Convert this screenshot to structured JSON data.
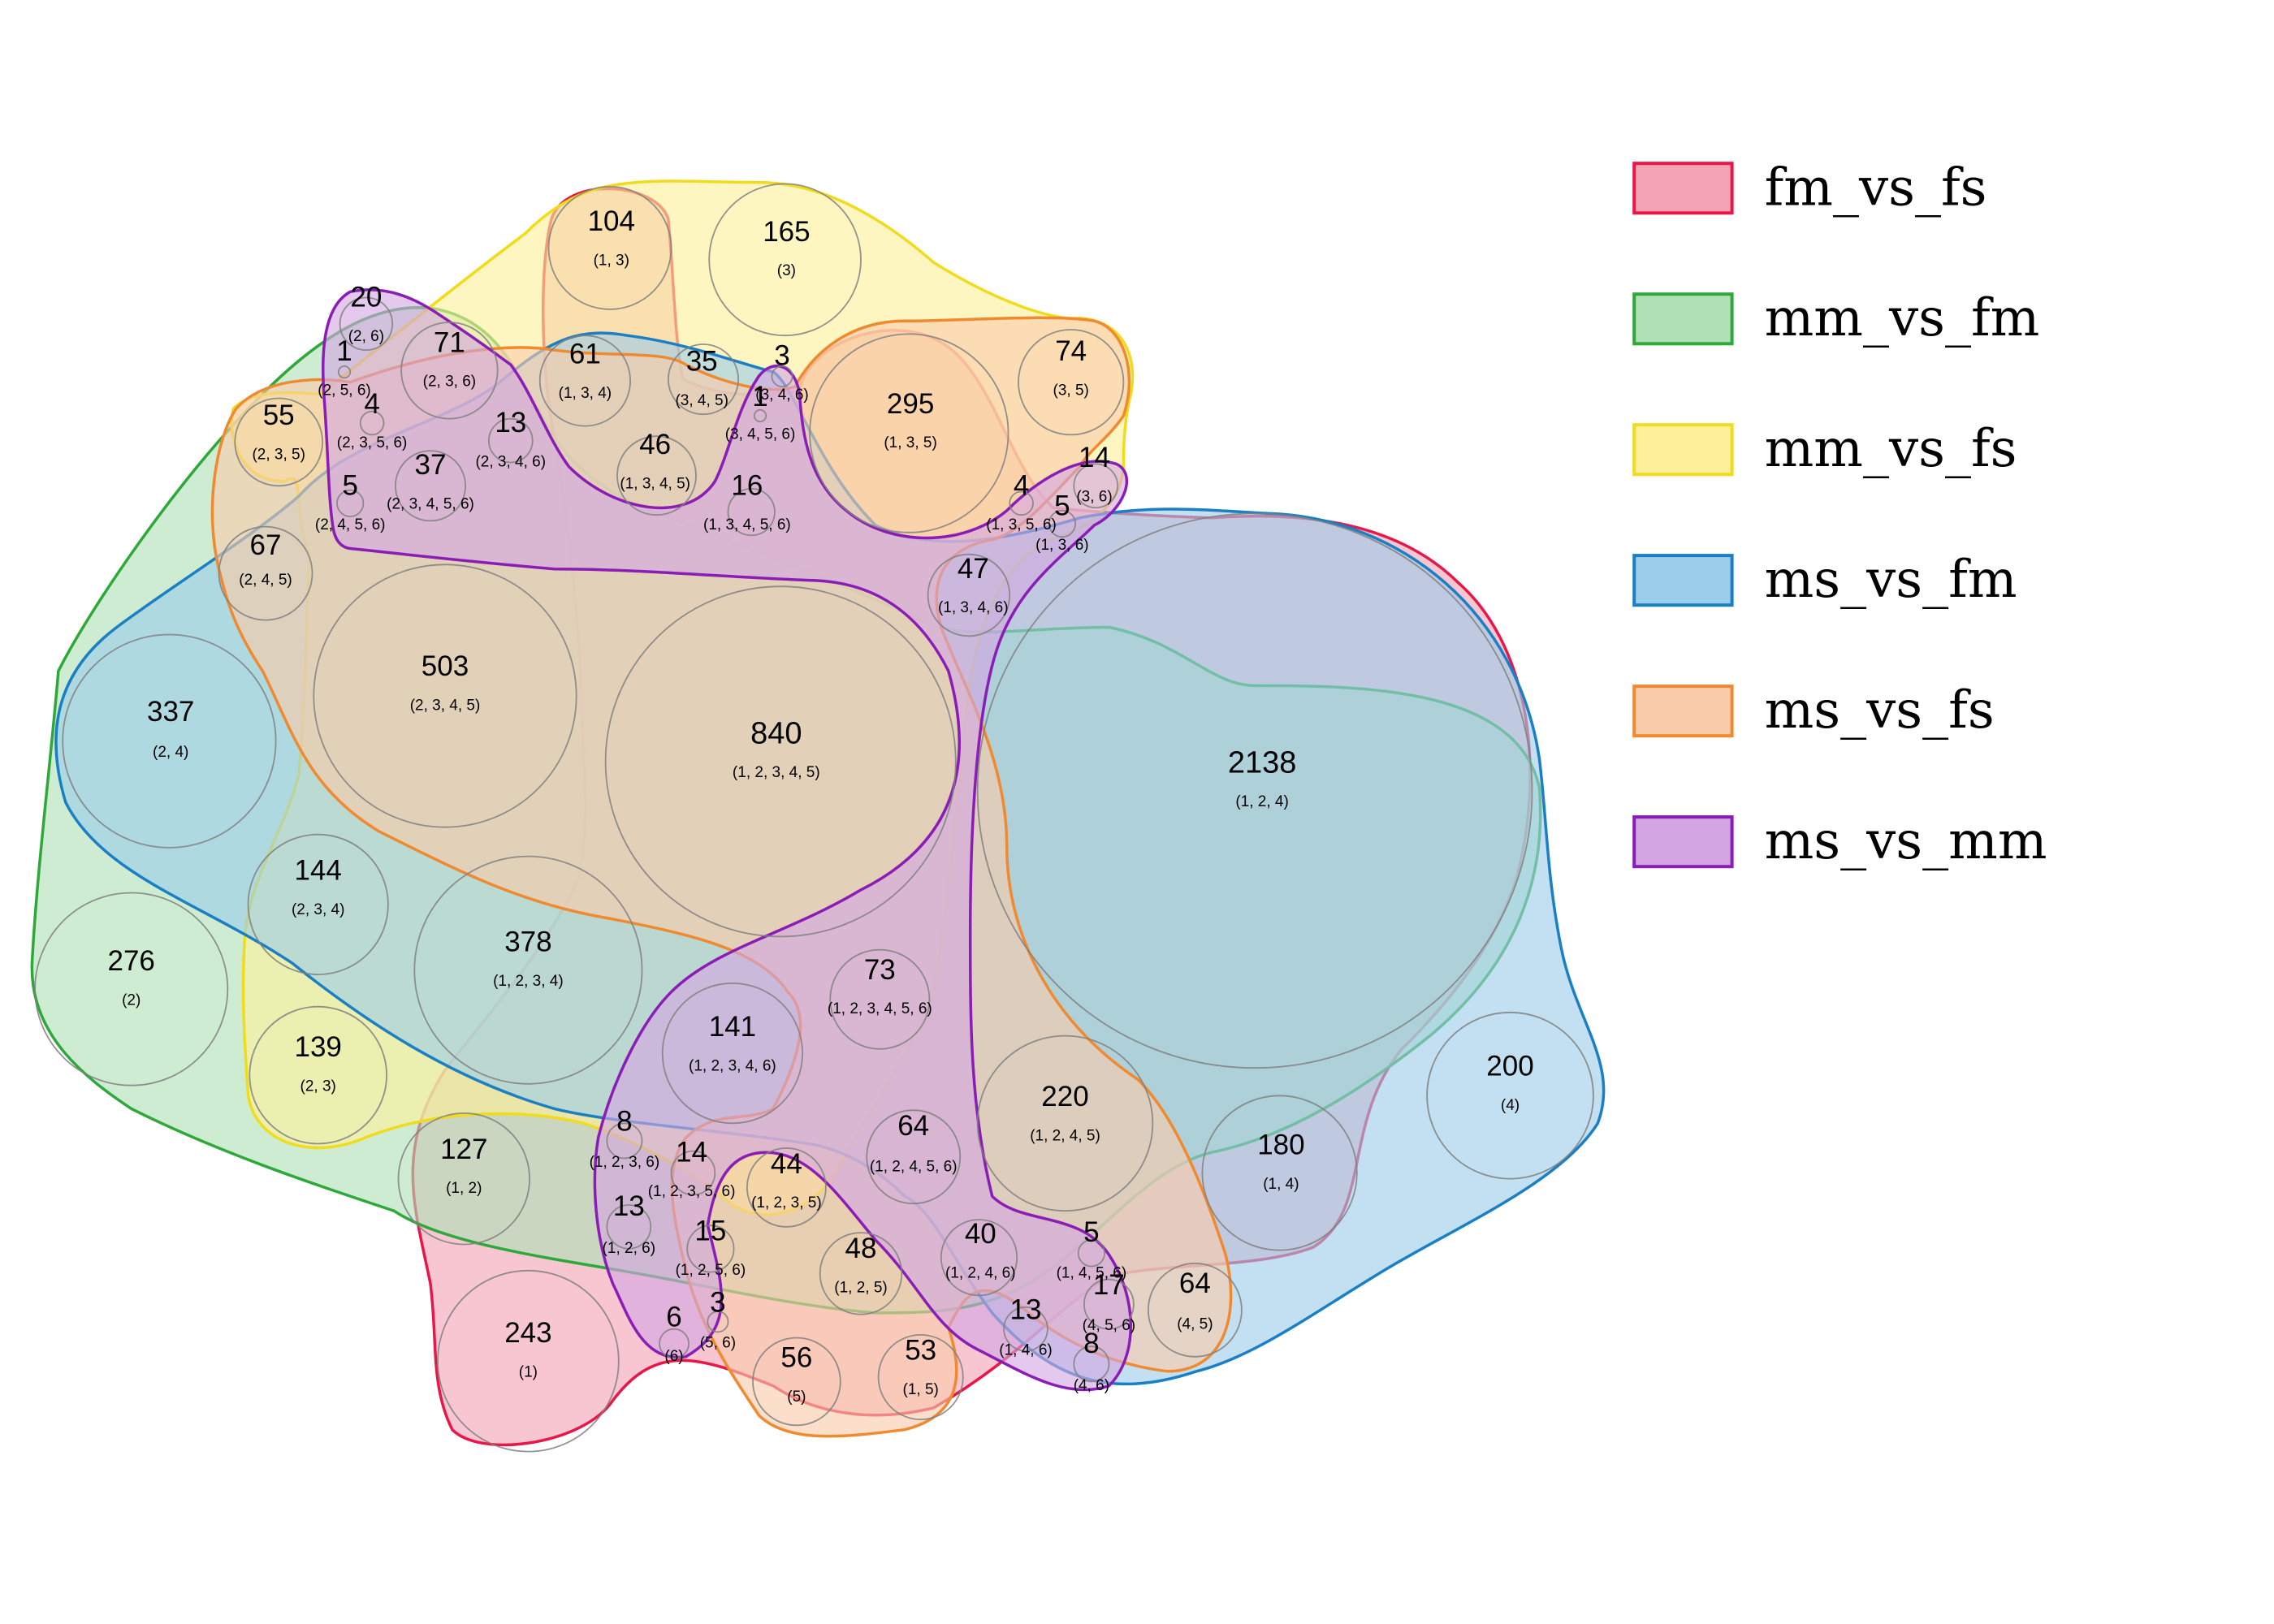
{
  "chart_data": {
    "type": "venn",
    "sets": [
      {
        "id": 1,
        "name": "fm_vs_fs",
        "color": "#e8174a",
        "fill": "#f4a3b5"
      },
      {
        "id": 2,
        "name": "mm_vs_fm",
        "color": "#2ea83a",
        "fill": "#b0e0b5"
      },
      {
        "id": 3,
        "name": "mm_vs_fs",
        "color": "#f0dc1c",
        "fill": "#fdf09a"
      },
      {
        "id": 4,
        "name": "ms_vs_fm",
        "color": "#1a7fc4",
        "fill": "#9ccde9"
      },
      {
        "id": 5,
        "name": "ms_vs_fs",
        "color": "#f08a30",
        "fill": "#facbaa"
      },
      {
        "id": 6,
        "name": "ms_vs_mm",
        "color": "#8a1db5",
        "fill": "#d3a6e2"
      }
    ],
    "legend_position": "right",
    "regions": [
      {
        "value": "2138",
        "combo": "(1, 2, 4)"
      },
      {
        "value": "840",
        "combo": "(1, 2, 3, 4, 5)"
      },
      {
        "value": "503",
        "combo": "(2, 3, 4, 5)"
      },
      {
        "value": "378",
        "combo": "(1, 2, 3, 4)"
      },
      {
        "value": "337",
        "combo": "(2, 4)"
      },
      {
        "value": "295",
        "combo": "(1, 3, 5)"
      },
      {
        "value": "276",
        "combo": "(2)"
      },
      {
        "value": "243",
        "combo": "(1)"
      },
      {
        "value": "220",
        "combo": "(1, 2, 4, 5)"
      },
      {
        "value": "200",
        "combo": "(4)"
      },
      {
        "value": "180",
        "combo": "(1, 4)"
      },
      {
        "value": "165",
        "combo": "(3)"
      },
      {
        "value": "144",
        "combo": "(2, 3, 4)"
      },
      {
        "value": "141",
        "combo": "(1, 2, 3, 4, 6)"
      },
      {
        "value": "139",
        "combo": "(2, 3)"
      },
      {
        "value": "127",
        "combo": "(1, 2)"
      },
      {
        "value": "104",
        "combo": "(1, 3)"
      },
      {
        "value": "74",
        "combo": "(3, 5)"
      },
      {
        "value": "73",
        "combo": "(1, 2, 3, 4, 5, 6)"
      },
      {
        "value": "71",
        "combo": "(2, 3, 6)"
      },
      {
        "value": "67",
        "combo": "(2, 4, 5)"
      },
      {
        "value": "64",
        "combo": "(1, 2, 4, 5, 6)"
      },
      {
        "value": "64",
        "combo": "(4, 5)"
      },
      {
        "value": "61",
        "combo": "(1, 3, 4)"
      },
      {
        "value": "56",
        "combo": "(5)"
      },
      {
        "value": "55",
        "combo": "(2, 3, 5)"
      },
      {
        "value": "53",
        "combo": "(1, 5)"
      },
      {
        "value": "48",
        "combo": "(1, 2, 5)"
      },
      {
        "value": "47",
        "combo": "(1, 3, 4, 6)"
      },
      {
        "value": "46",
        "combo": "(1, 3, 4, 5)"
      },
      {
        "value": "44",
        "combo": "(1, 2, 3, 5)"
      },
      {
        "value": "40",
        "combo": "(1, 2, 4, 6)"
      },
      {
        "value": "37",
        "combo": "(2, 3, 4, 5, 6)"
      },
      {
        "value": "35",
        "combo": "(3, 4, 5)"
      },
      {
        "value": "20",
        "combo": "(2, 6)"
      },
      {
        "value": "17",
        "combo": "(4, 5, 6)"
      },
      {
        "value": "16",
        "combo": "(1, 3, 4, 5, 6)"
      },
      {
        "value": "15",
        "combo": "(1, 2, 5, 6)"
      },
      {
        "value": "14",
        "combo": "(1, 2, 3, 5, 6)"
      },
      {
        "value": "14",
        "combo": "(3, 6)"
      },
      {
        "value": "13",
        "combo": "(2, 3, 4, 6)"
      },
      {
        "value": "13",
        "combo": "(1, 2, 6)"
      },
      {
        "value": "13",
        "combo": "(1, 4, 6)"
      },
      {
        "value": "8",
        "combo": "(1, 2, 3, 6)"
      },
      {
        "value": "8",
        "combo": "(4, 6)"
      },
      {
        "value": "6",
        "combo": "(6)"
      },
      {
        "value": "5",
        "combo": "(2, 4, 5, 6)"
      },
      {
        "value": "5",
        "combo": "(1, 3, 6)"
      },
      {
        "value": "5",
        "combo": "(1, 4, 5, 6)"
      },
      {
        "value": "4",
        "combo": "(2, 3, 5, 6)"
      },
      {
        "value": "4",
        "combo": "(1, 3, 5, 6)"
      },
      {
        "value": "3",
        "combo": "(3, 4, 6)"
      },
      {
        "value": "3",
        "combo": "(5, 6)"
      },
      {
        "value": "1",
        "combo": "(2, 5, 6)"
      },
      {
        "value": "1",
        "combo": "(3, 4, 5, 6)"
      }
    ]
  }
}
